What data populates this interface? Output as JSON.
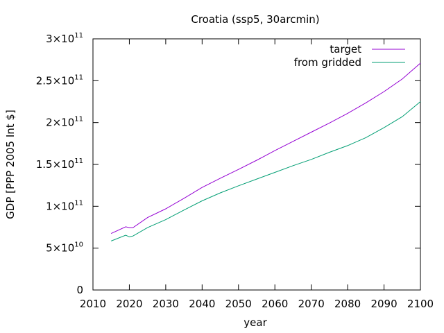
{
  "chart_data": {
    "type": "line",
    "title": "Croatia (ssp5, 30arcmin)",
    "xlabel": "year",
    "ylabel": "GDP [PPP 2005 Int $]",
    "xlim": [
      2010,
      2100
    ],
    "ylim": [
      0,
      300000000000
    ],
    "grid": false,
    "legend_position": "top-right",
    "x_ticks": [
      2010,
      2020,
      2030,
      2040,
      2050,
      2060,
      2070,
      2080,
      2090,
      2100
    ],
    "y_ticks": [
      {
        "value": 0,
        "mantissa": "0",
        "exponent": ""
      },
      {
        "value": 50000000000,
        "mantissa": "5×10",
        "exponent": "10"
      },
      {
        "value": 100000000000,
        "mantissa": "1×10",
        "exponent": "11"
      },
      {
        "value": 150000000000,
        "mantissa": "1.5×10",
        "exponent": "11"
      },
      {
        "value": 200000000000,
        "mantissa": "2×10",
        "exponent": "11"
      },
      {
        "value": 250000000000,
        "mantissa": "2.5×10",
        "exponent": "11"
      },
      {
        "value": 300000000000,
        "mantissa": "3×10",
        "exponent": "11"
      }
    ],
    "x": [
      2015,
      2019,
      2020,
      2021,
      2025,
      2030,
      2035,
      2040,
      2045,
      2050,
      2055,
      2060,
      2065,
      2070,
      2075,
      2080,
      2085,
      2090,
      2095,
      2100
    ],
    "series": [
      {
        "name": "target",
        "color": "#9400d3",
        "values": [
          67500000000,
          75500000000,
          74500000000,
          74500000000,
          86500000000,
          97000000000,
          109500000000,
          122500000000,
          133500000000,
          144000000000,
          155000000000,
          166500000000,
          177500000000,
          188500000000,
          199500000000,
          211000000000,
          223500000000,
          237000000000,
          252000000000,
          271000000000
        ]
      },
      {
        "name": "from gridded",
        "color": "#009e73",
        "values": [
          58500000000,
          65500000000,
          63500000000,
          64500000000,
          74500000000,
          84000000000,
          95500000000,
          106500000000,
          116000000000,
          124500000000,
          132500000000,
          140500000000,
          148500000000,
          156000000000,
          164500000000,
          172500000000,
          182000000000,
          194000000000,
          207000000000,
          225000000000
        ]
      }
    ]
  }
}
